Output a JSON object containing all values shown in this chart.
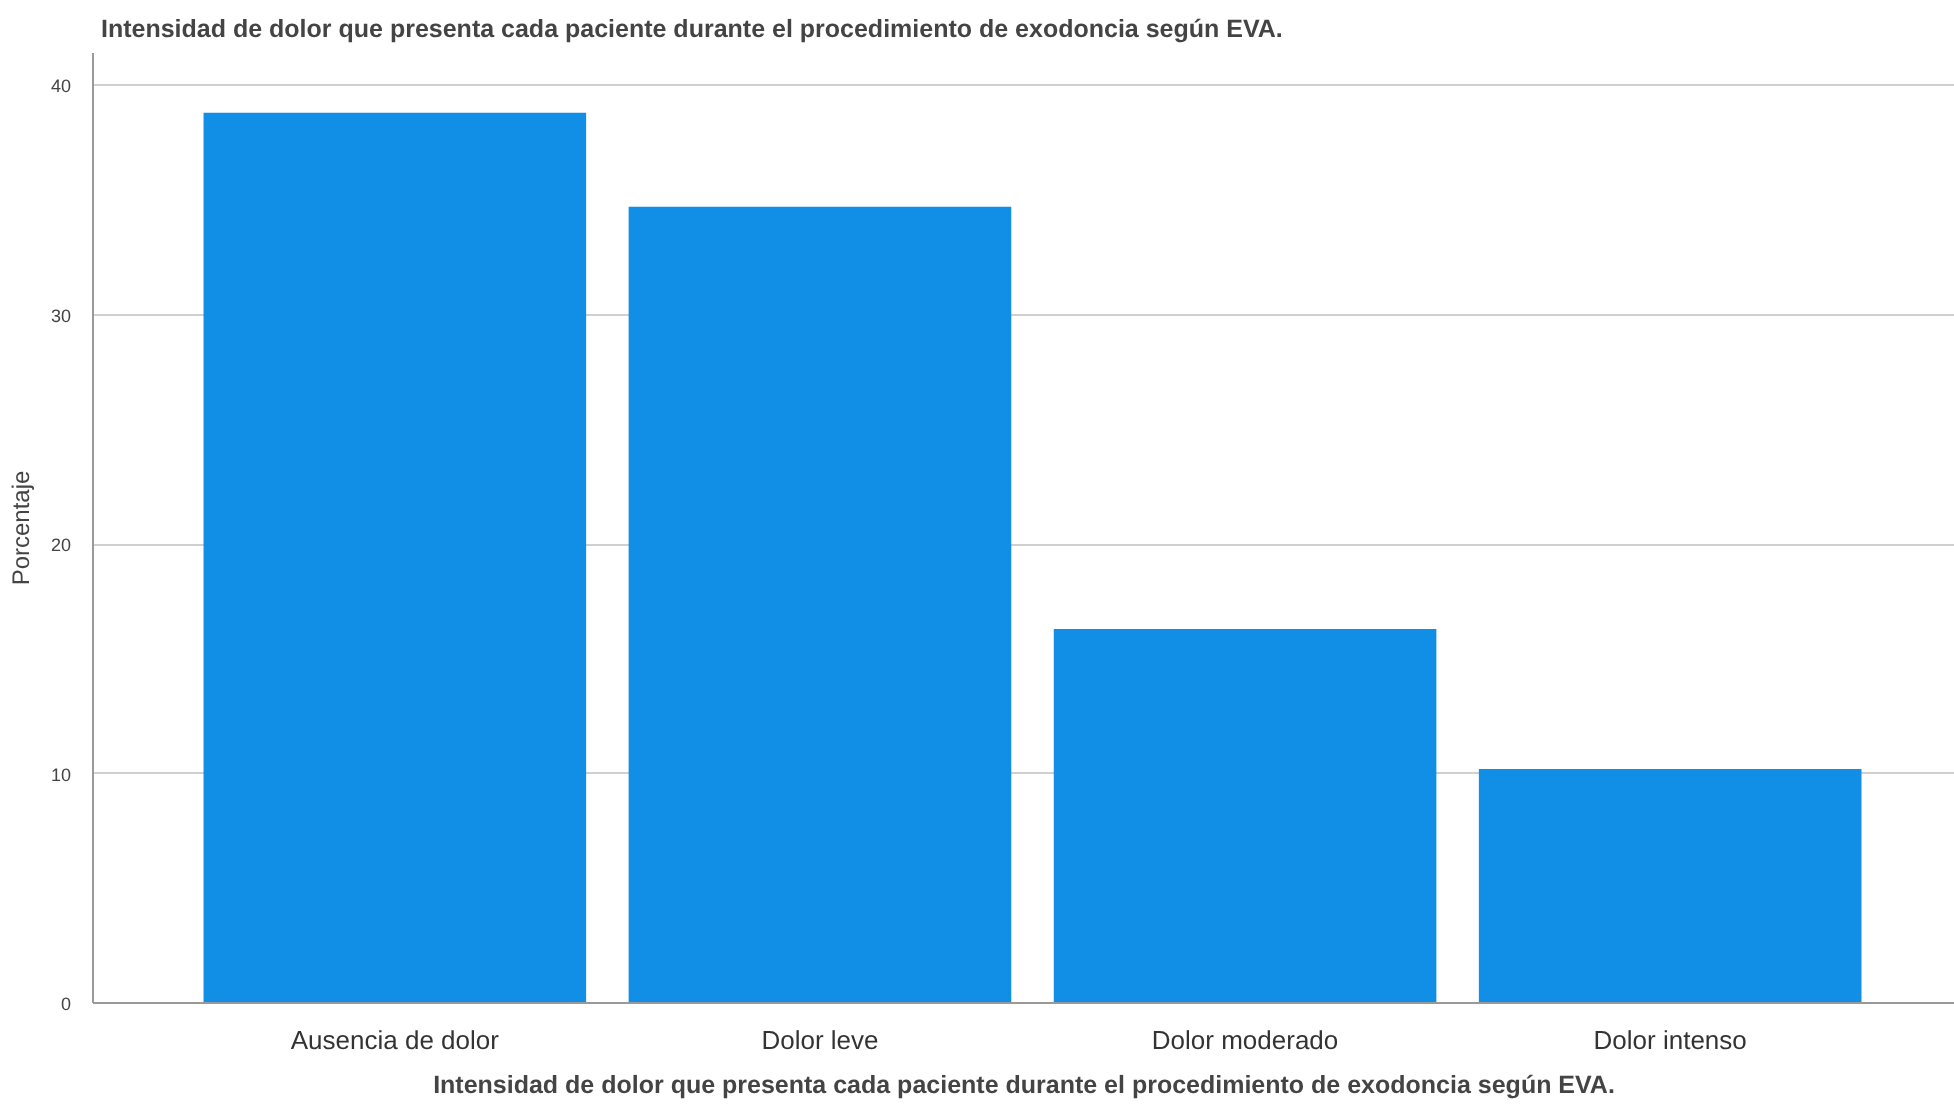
{
  "chart_data": {
    "type": "bar",
    "title": "Intensidad de dolor que presenta cada paciente durante el procedimiento de exodoncia según EVA.",
    "xlabel": "Intensidad de dolor que presenta cada paciente durante el procedimiento de exodoncia según EVA.",
    "ylabel": "Porcentaje",
    "categories": [
      "Ausencia de dolor",
      "Dolor leve",
      "Dolor moderado",
      "Dolor intenso"
    ],
    "values": [
      38.8,
      34.7,
      16.3,
      10.2
    ],
    "color": "#118fe6",
    "ylim": [
      0,
      41.4
    ],
    "yticks": [
      0,
      10,
      20,
      30,
      40
    ],
    "grid": "y"
  }
}
